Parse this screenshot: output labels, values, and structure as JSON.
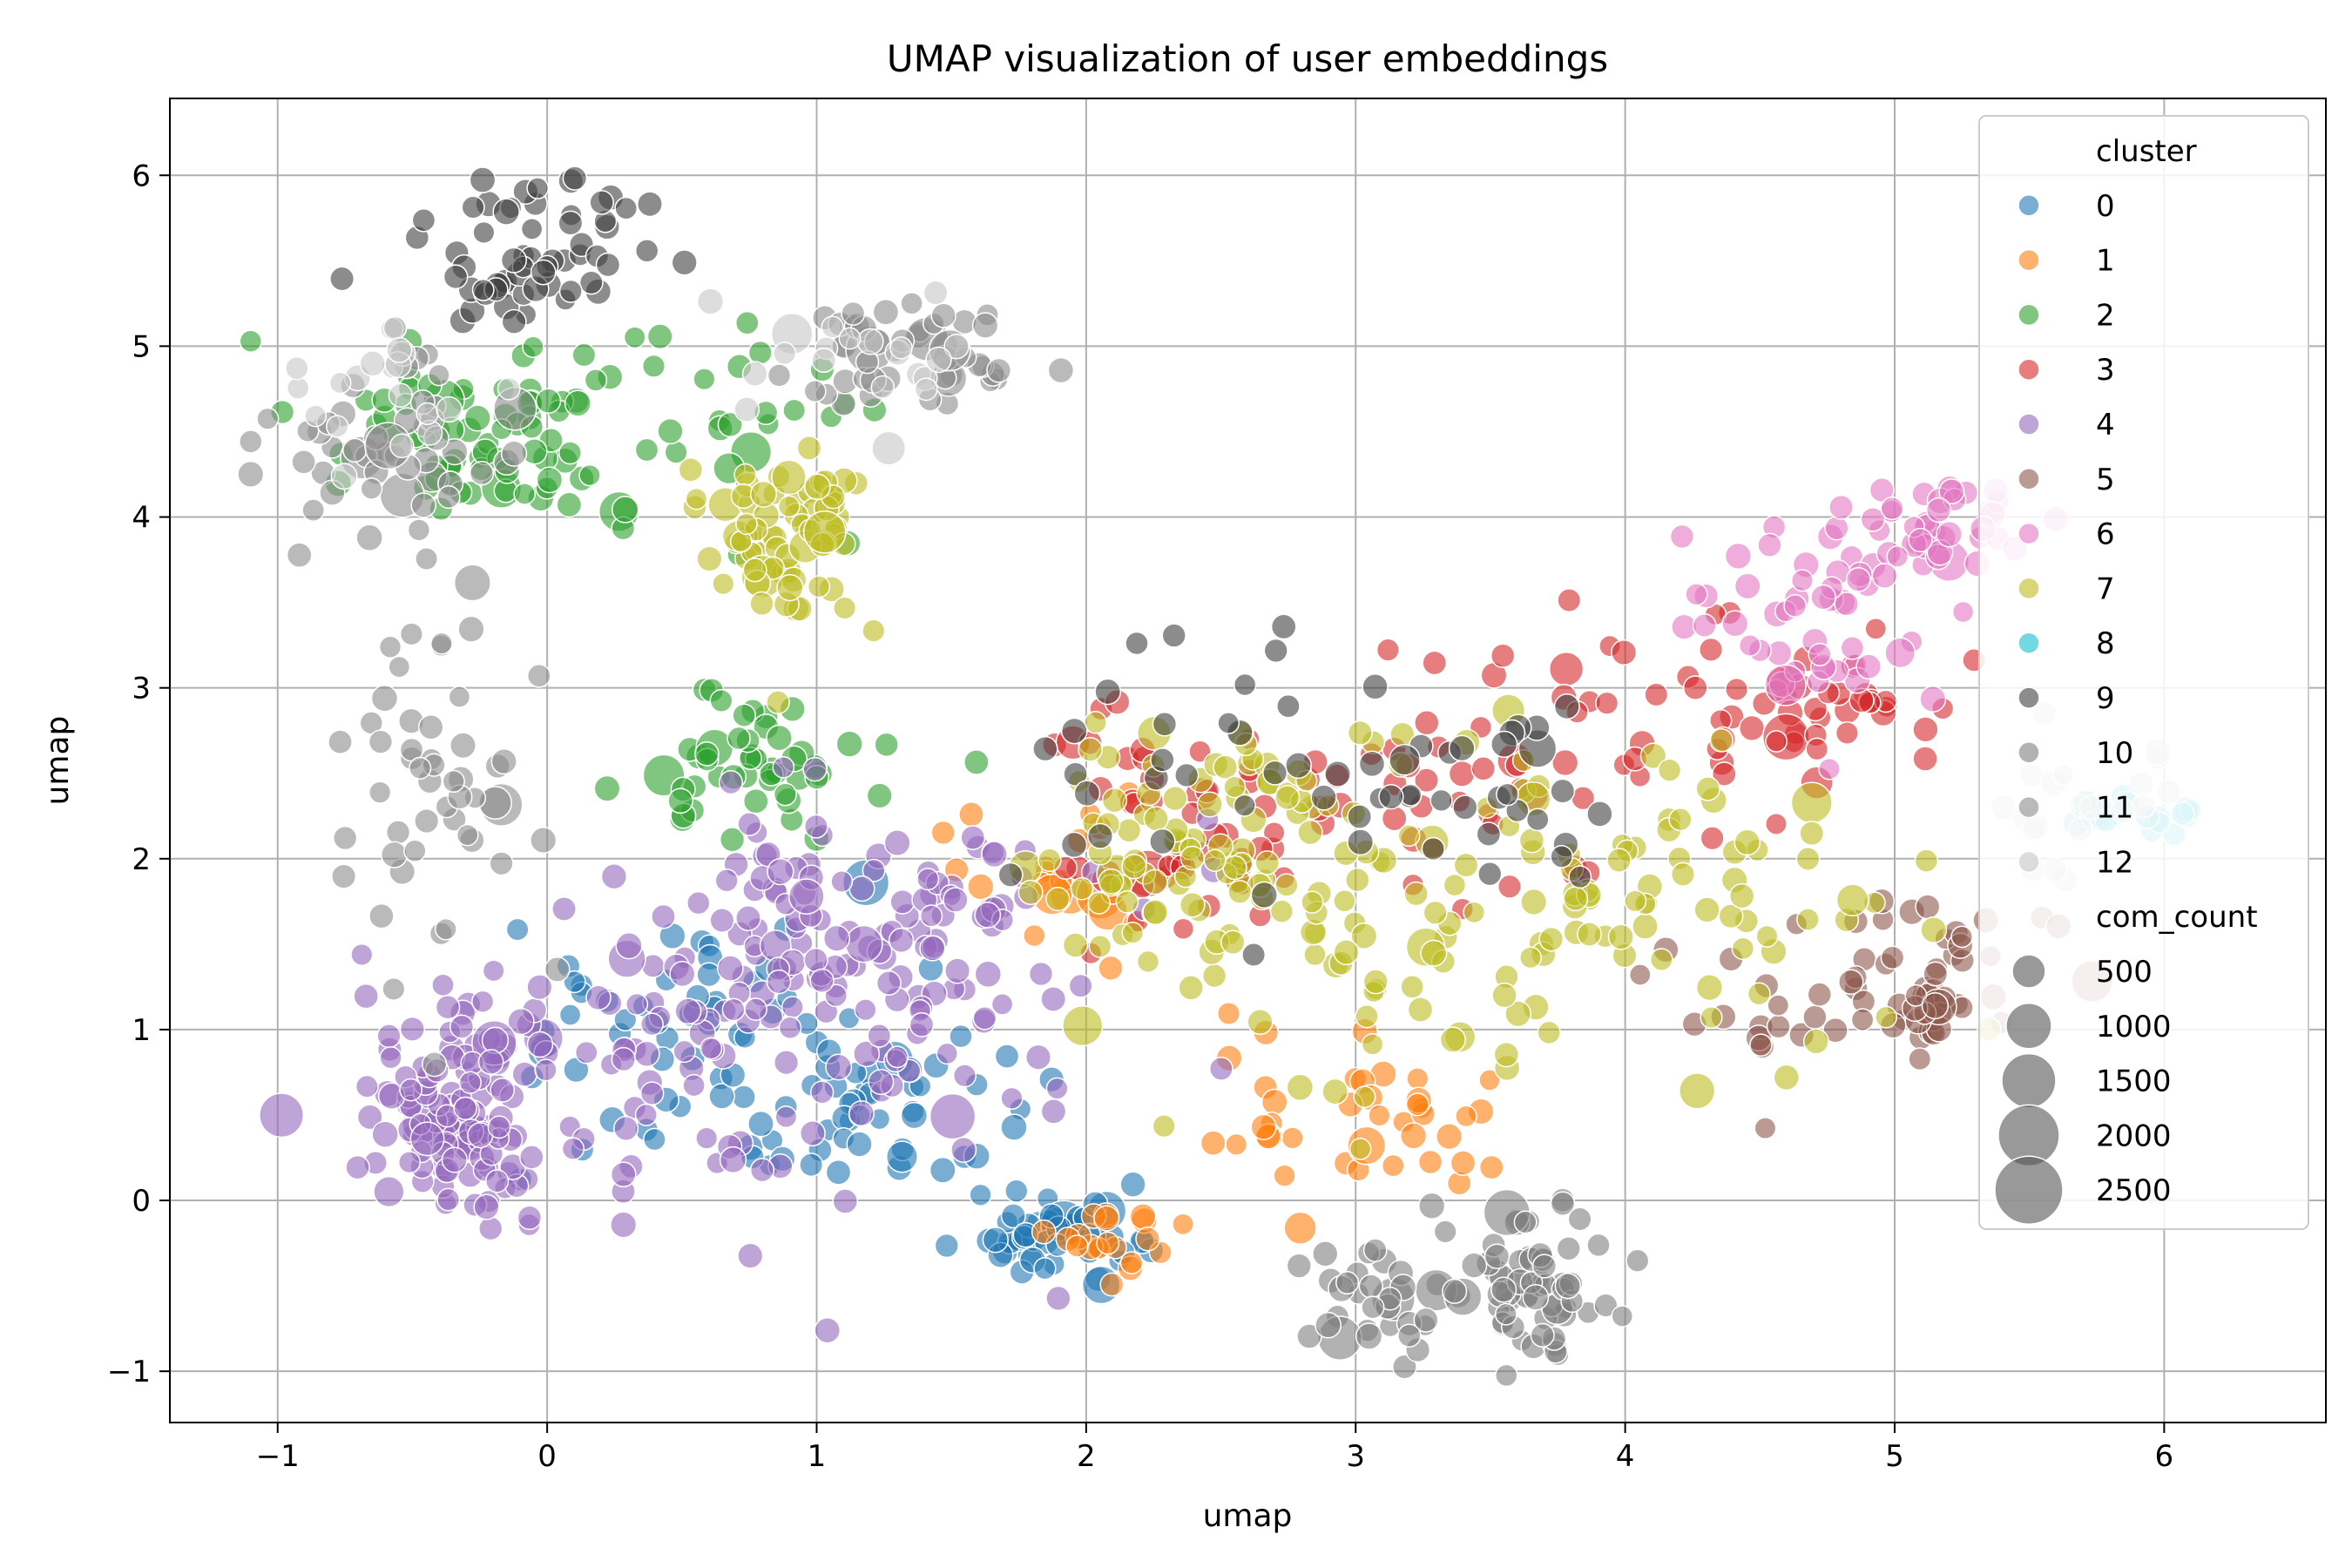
{
  "chart_data": {
    "type": "scatter",
    "title": "UMAP visualization of user embeddings",
    "xlabel": "umap",
    "ylabel": "umap",
    "xlim": [
      -1.4,
      6.6
    ],
    "ylim": [
      -1.3,
      6.45
    ],
    "xticks": [
      -1,
      0,
      1,
      2,
      3,
      4,
      5,
      6
    ],
    "yticks": [
      -1,
      0,
      1,
      2,
      3,
      4,
      5,
      6
    ],
    "tick_labels_x": [
      "−1",
      "0",
      "1",
      "2",
      "3",
      "4",
      "5",
      "6"
    ],
    "tick_labels_y": [
      "−1",
      "0",
      "1",
      "2",
      "3",
      "4",
      "5",
      "6"
    ],
    "grid": true,
    "legend": {
      "placement": "top-right",
      "hue_title": "cluster",
      "size_title": "com_count",
      "size_entries": [
        {
          "label": "500",
          "value": 500
        },
        {
          "label": "1000",
          "value": 1000
        },
        {
          "label": "1500",
          "value": 1500
        },
        {
          "label": "2000",
          "value": 2000
        },
        {
          "label": "2500",
          "value": 2500
        }
      ]
    },
    "series": [
      {
        "name": "0",
        "color": "#1f77b4",
        "n": 150,
        "centers": [
          [
            0.4,
            1.0,
            0.45,
            0.45
          ],
          [
            1.3,
            0.6,
            0.4,
            0.4
          ],
          [
            1.9,
            -0.2,
            0.2,
            0.15
          ]
        ]
      },
      {
        "name": "1",
        "color": "#ff7f0e",
        "n": 80,
        "centers": [
          [
            2.1,
            -0.25,
            0.15,
            0.1
          ],
          [
            2.8,
            0.5,
            0.3,
            0.35
          ],
          [
            3.2,
            0.4,
            0.2,
            0.3
          ],
          [
            1.8,
            1.9,
            0.3,
            0.3
          ]
        ]
      },
      {
        "name": "2",
        "color": "#2ca02c",
        "n": 150,
        "centers": [
          [
            0.3,
            4.6,
            0.6,
            0.4
          ],
          [
            -0.3,
            4.4,
            0.3,
            0.3
          ],
          [
            0.8,
            2.6,
            0.3,
            0.3
          ]
        ]
      },
      {
        "name": "3",
        "color": "#d62728",
        "n": 150,
        "centers": [
          [
            2.3,
            2.2,
            0.35,
            0.5
          ],
          [
            3.5,
            2.5,
            0.5,
            0.4
          ],
          [
            4.6,
            2.9,
            0.4,
            0.3
          ]
        ]
      },
      {
        "name": "4",
        "color": "#9467bd",
        "n": 340,
        "centers": [
          [
            0.6,
            0.8,
            0.8,
            0.6
          ],
          [
            1.2,
            1.6,
            0.5,
            0.4
          ],
          [
            -0.3,
            0.5,
            0.2,
            0.4
          ]
        ]
      },
      {
        "name": "5",
        "color": "#8c564b",
        "n": 70,
        "centers": [
          [
            5.1,
            1.1,
            0.12,
            0.15
          ],
          [
            5.2,
            1.5,
            0.2,
            0.3
          ],
          [
            4.6,
            1.2,
            0.3,
            0.4
          ]
        ]
      },
      {
        "name": "6",
        "color": "#e377c2",
        "n": 90,
        "centers": [
          [
            5.1,
            3.9,
            0.25,
            0.2
          ],
          [
            4.7,
            3.4,
            0.3,
            0.3
          ]
        ]
      },
      {
        "name": "7",
        "color": "#bcbd22",
        "n": 300,
        "centers": [
          [
            3.0,
            1.6,
            0.7,
            0.6
          ],
          [
            4.2,
            1.8,
            0.6,
            0.6
          ],
          [
            2.4,
            2.2,
            0.4,
            0.4
          ],
          [
            0.9,
            3.9,
            0.2,
            0.3
          ]
        ]
      },
      {
        "name": "8",
        "color": "#17becf",
        "n": 20,
        "centers": [
          [
            5.9,
            2.25,
            0.2,
            0.06
          ]
        ]
      },
      {
        "name": "9",
        "color": "#404040",
        "n": 120,
        "centers": [
          [
            0.15,
            5.7,
            0.3,
            0.25
          ],
          [
            -0.1,
            5.35,
            0.3,
            0.2
          ],
          [
            2.5,
            2.6,
            0.6,
            0.5
          ],
          [
            3.3,
            2.5,
            0.4,
            0.4
          ]
        ]
      },
      {
        "name": "10",
        "color": "#7f7f7f",
        "n": 100,
        "centers": [
          [
            3.3,
            -0.55,
            0.35,
            0.25
          ],
          [
            3.7,
            -0.5,
            0.15,
            0.3
          ]
        ]
      },
      {
        "name": "11",
        "color": "#8c8c8c",
        "n": 150,
        "centers": [
          [
            -0.6,
            4.4,
            0.3,
            0.4
          ],
          [
            -0.4,
            2.5,
            0.3,
            0.7
          ],
          [
            1.3,
            5.0,
            0.3,
            0.25
          ]
        ]
      },
      {
        "name": "12",
        "color": "#c7c7c7",
        "n": 60,
        "centers": [
          [
            -0.7,
            4.7,
            0.2,
            0.3
          ],
          [
            1.1,
            5.0,
            0.4,
            0.3
          ],
          [
            5.6,
            2.2,
            0.3,
            0.3
          ]
        ]
      }
    ]
  }
}
